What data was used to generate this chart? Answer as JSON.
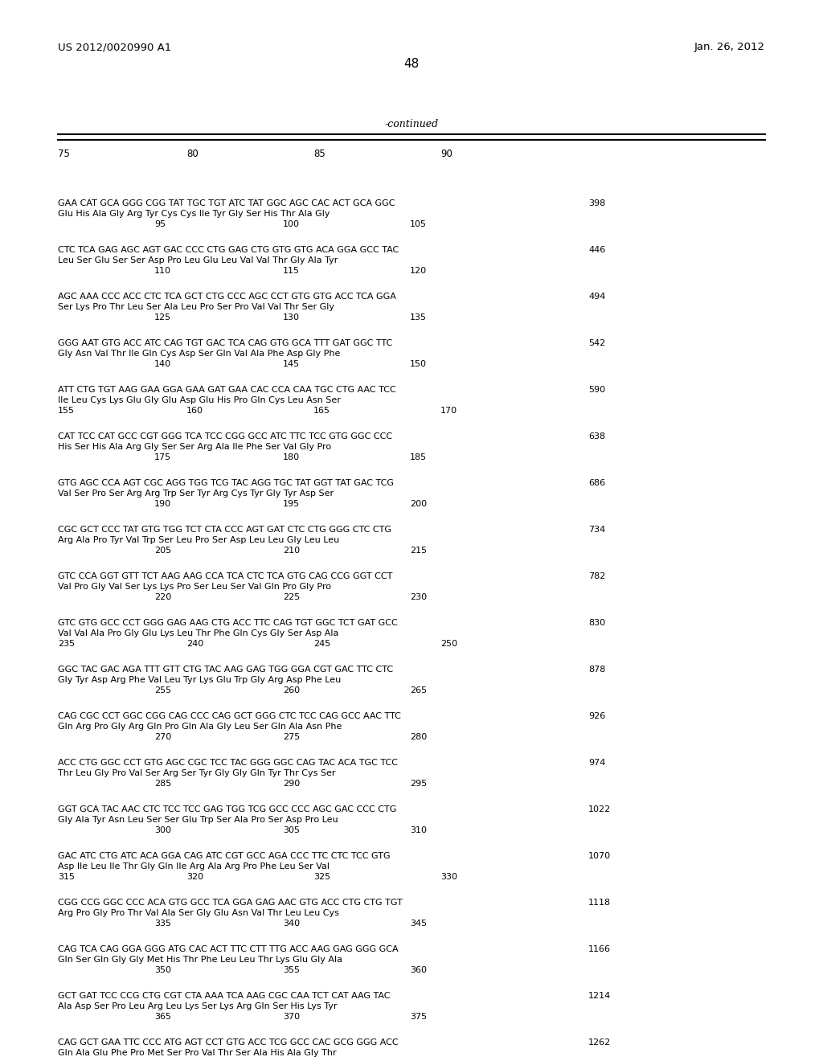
{
  "header_left": "US 2012/0020990 A1",
  "header_right": "Jan. 26, 2012",
  "page_number": "48",
  "continued_label": "-continued",
  "background_color": "#ffffff",
  "text_color": "#000000",
  "sequence_blocks": [
    {
      "dna": "GAA CAT GCA GGG CGG TAT TGC TGT ATC TAT GGC AGC CAC ACT GCA GGC",
      "aa": "Glu His Ala Gly Arg Tyr Cys Cys Ile Tyr Gly Ser His Thr Ala Gly",
      "nums": [
        "95",
        "100",
        "105"
      ],
      "num_cols": 3,
      "end_num": "398"
    },
    {
      "dna": "CTC TCA GAG AGC AGT GAC CCC CTG GAG CTG GTG GTG ACA GGA GCC TAC",
      "aa": "Leu Ser Glu Ser Ser Asp Pro Leu Glu Leu Val Val Thr Gly Ala Tyr",
      "nums": [
        "110",
        "115",
        "120"
      ],
      "num_cols": 3,
      "end_num": "446"
    },
    {
      "dna": "AGC AAA CCC ACC CTC TCA GCT CTG CCC AGC CCT GTG GTG ACC TCA GGA",
      "aa": "Ser Lys Pro Thr Leu Ser Ala Leu Pro Ser Pro Val Val Thr Ser Gly",
      "nums": [
        "125",
        "130",
        "135"
      ],
      "num_cols": 3,
      "end_num": "494"
    },
    {
      "dna": "GGG AAT GTG ACC ATC CAG TGT GAC TCA CAG GTG GCA TTT GAT GGC TTC",
      "aa": "Gly Asn Val Thr Ile Gln Cys Asp Ser Gln Val Ala Phe Asp Gly Phe",
      "nums": [
        "140",
        "145",
        "150"
      ],
      "num_cols": 3,
      "end_num": "542"
    },
    {
      "dna": "ATT CTG TGT AAG GAA GGA GAA GAT GAA CAC CCA CAA TGC CTG AAC TCC",
      "aa": "Ile Leu Cys Lys Glu Gly Glu Asp Glu His Pro Gln Cys Leu Asn Ser",
      "nums": [
        "155",
        "160",
        "165",
        "170"
      ],
      "num_cols": 4,
      "end_num": "590"
    },
    {
      "dna": "CAT TCC CAT GCC CGT GGG TCA TCC CGG GCC ATC TTC TCC GTG GGC CCC",
      "aa": "His Ser His Ala Arg Gly Ser Ser Arg Ala Ile Phe Ser Val Gly Pro",
      "nums": [
        "175",
        "180",
        "185"
      ],
      "num_cols": 3,
      "end_num": "638"
    },
    {
      "dna": "GTG AGC CCA AGT CGC AGG TGG TCG TAC AGG TGC TAT GGT TAT GAC TCG",
      "aa": "Val Ser Pro Ser Arg Arg Trp Ser Tyr Arg Cys Tyr Gly Tyr Asp Ser",
      "nums": [
        "190",
        "195",
        "200"
      ],
      "num_cols": 3,
      "end_num": "686"
    },
    {
      "dna": "CGC GCT CCC TAT GTG TGG TCT CTA CCC AGT GAT CTC CTG GGG CTC CTG",
      "aa": "Arg Ala Pro Tyr Val Trp Ser Leu Pro Ser Asp Leu Leu Gly Leu Leu",
      "nums": [
        "205",
        "210",
        "215"
      ],
      "num_cols": 3,
      "end_num": "734"
    },
    {
      "dna": "GTC CCA GGT GTT TCT AAG AAG CCA TCA CTC TCA GTG CAG CCG GGT CCT",
      "aa": "Val Pro Gly Val Ser Lys Lys Pro Ser Leu Ser Val Gln Pro Gly Pro",
      "nums": [
        "220",
        "225",
        "230"
      ],
      "num_cols": 3,
      "end_num": "782"
    },
    {
      "dna": "GTC GTG GCC CCT GGG GAG AAG CTG ACC TTC CAG TGT GGC TCT GAT GCC",
      "aa": "Val Val Ala Pro Gly Glu Lys Leu Thr Phe Gln Cys Gly Ser Asp Ala",
      "nums": [
        "235",
        "240",
        "245",
        "250"
      ],
      "num_cols": 4,
      "end_num": "830"
    },
    {
      "dna": "GGC TAC GAC AGA TTT GTT CTG TAC AAG GAG TGG GGA CGT GAC TTC CTC",
      "aa": "Gly Tyr Asp Arg Phe Val Leu Tyr Lys Glu Trp Gly Arg Asp Phe Leu",
      "nums": [
        "255",
        "260",
        "265"
      ],
      "num_cols": 3,
      "end_num": "878"
    },
    {
      "dna": "CAG CGC CCT GGC CGG CAG CCC CAG GCT GGG CTC TCC CAG GCC AAC TTC",
      "aa": "Gln Arg Pro Gly Arg Gln Pro Gln Ala Gly Leu Ser Gln Ala Asn Phe",
      "nums": [
        "270",
        "275",
        "280"
      ],
      "num_cols": 3,
      "end_num": "926"
    },
    {
      "dna": "ACC CTG GGC CCT GTG AGC CGC TCC TAC GGG GGC CAG TAC ACA TGC TCC",
      "aa": "Thr Leu Gly Pro Val Ser Arg Ser Tyr Gly Gly Gln Tyr Thr Cys Ser",
      "nums": [
        "285",
        "290",
        "295"
      ],
      "num_cols": 3,
      "end_num": "974"
    },
    {
      "dna": "GGT GCA TAC AAC CTC TCC TCC GAG TGG TCG GCC CCC AGC GAC CCC CTG",
      "aa": "Gly Ala Tyr Asn Leu Ser Ser Glu Trp Ser Ala Pro Ser Asp Pro Leu",
      "nums": [
        "300",
        "305",
        "310"
      ],
      "num_cols": 3,
      "end_num": "1022"
    },
    {
      "dna": "GAC ATC CTG ATC ACA GGA CAG ATC CGT GCC AGA CCC TTC CTC TCC GTG",
      "aa": "Asp Ile Leu Ile Thr Gly Gln Ile Arg Ala Arg Pro Phe Leu Ser Val",
      "nums": [
        "315",
        "320",
        "325",
        "330"
      ],
      "num_cols": 4,
      "end_num": "1070"
    },
    {
      "dna": "CGG CCG GGC CCC ACA GTG GCC TCA GGA GAG AAC GTG ACC CTG CTG TGT",
      "aa": "Arg Pro Gly Pro Thr Val Ala Ser Gly Glu Asn Val Thr Leu Leu Cys",
      "nums": [
        "335",
        "340",
        "345"
      ],
      "num_cols": 3,
      "end_num": "1118"
    },
    {
      "dna": "CAG TCA CAG GGA GGG ATG CAC ACT TTC CTT TTG ACC AAG GAG GGG GCA",
      "aa": "Gln Ser Gln Gly Gly Met His Thr Phe Leu Leu Thr Lys Glu Gly Ala",
      "nums": [
        "350",
        "355",
        "360"
      ],
      "num_cols": 3,
      "end_num": "1166"
    },
    {
      "dna": "GCT GAT TCC CCG CTG CGT CTA AAA TCA AAG CGC CAA TCT CAT AAG TAC",
      "aa": "Ala Asp Ser Pro Leu Arg Leu Lys Ser Lys Arg Gln Ser His Lys Tyr",
      "nums": [
        "365",
        "370",
        "375"
      ],
      "num_cols": 3,
      "end_num": "1214"
    },
    {
      "dna": "CAG GCT GAA TTC CCC ATG AGT CCT GTG ACC TCG GCC CAC GCG GGG ACC",
      "aa": "Gln Ala Glu Phe Pro Met Ser Pro Val Thr Ser Ala His Ala Gly Thr",
      "nums": [],
      "num_cols": 0,
      "end_num": "1262"
    }
  ]
}
